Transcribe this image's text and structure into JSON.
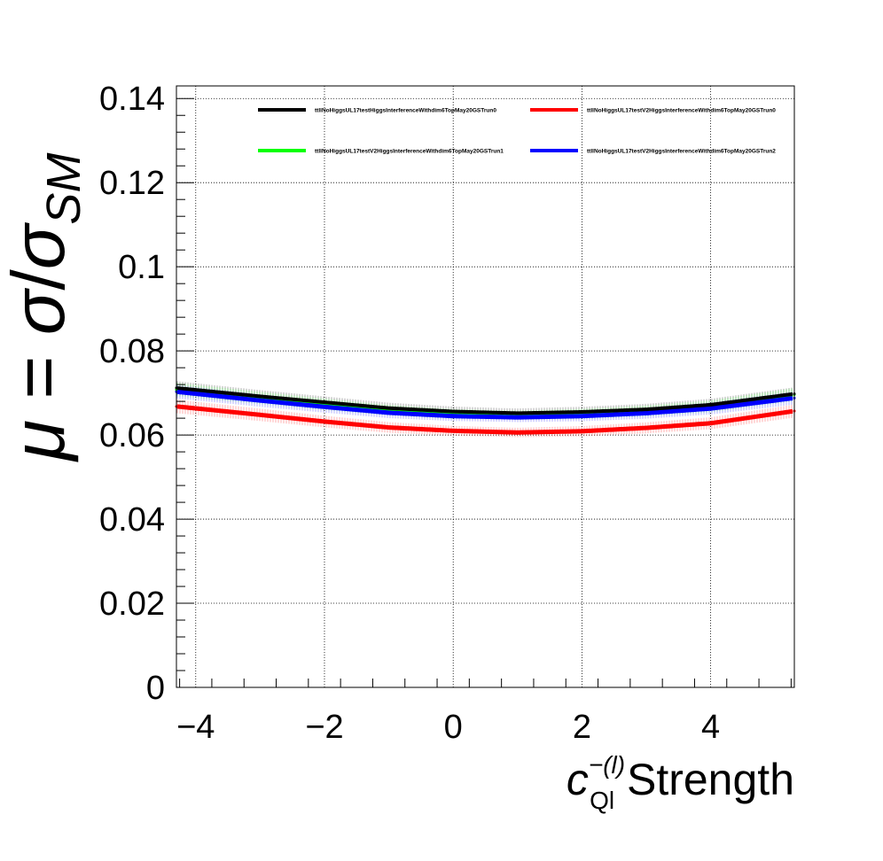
{
  "chart_data": {
    "type": "line",
    "title": "",
    "xlabel": {
      "base": "c",
      "superscript": "−(l)",
      "subscript": "Ql",
      "suffix": " Strength"
    },
    "ylabel": {
      "mu": "μ",
      "equals": " = ",
      "sigma": "σ",
      "slash": "/",
      "sigma2": "σ",
      "subscript": "SM"
    },
    "xlim": [
      -4.3,
      5.3
    ],
    "ylim": [
      0,
      0.143
    ],
    "grid": true,
    "legend_position": "top",
    "x_tick_labels": [
      "−4",
      "−2",
      "0",
      "2",
      "4"
    ],
    "y_tick_labels": [
      "0",
      "0.02",
      "0.04",
      "0.06",
      "0.08",
      "0.1",
      "0.12",
      "0.14"
    ],
    "x": [
      -4.3,
      -3.0,
      -2.0,
      -1.0,
      0.0,
      1.0,
      2.0,
      3.0,
      4.0,
      5.3
    ],
    "series": [
      {
        "name": "ttllNoHiggsUL17testHiggsInterferenceWithdim6TopMay20GSTrun0",
        "color": "#000000",
        "values": [
          0.0712,
          0.0692,
          0.0678,
          0.0664,
          0.0656,
          0.0652,
          0.0655,
          0.0661,
          0.0672,
          0.0698
        ]
      },
      {
        "name": "ttllNoHiggsUL17testV2HiggsInterferenceWithdim6TopMay20GSTrun0",
        "color": "#ff0000",
        "values": [
          0.0668,
          0.0648,
          0.0632,
          0.0618,
          0.061,
          0.0606,
          0.0609,
          0.0617,
          0.0628,
          0.0657
        ]
      },
      {
        "name": "ttllNoHiggsUL17testV2HiggsInterferenceWithdim6TopMay20GSTrun1",
        "color": "#00ff00",
        "values": [
          0.0708,
          0.0688,
          0.0673,
          0.0659,
          0.065,
          0.0647,
          0.065,
          0.0657,
          0.0668,
          0.0696
        ]
      },
      {
        "name": "ttllNoHiggsUL17testV2HiggsInterferenceWithdim6TopMay20GSTrun2",
        "color": "#0000ff",
        "values": [
          0.0703,
          0.0682,
          0.0667,
          0.0653,
          0.0645,
          0.0642,
          0.0645,
          0.0652,
          0.0663,
          0.0688
        ]
      }
    ]
  }
}
